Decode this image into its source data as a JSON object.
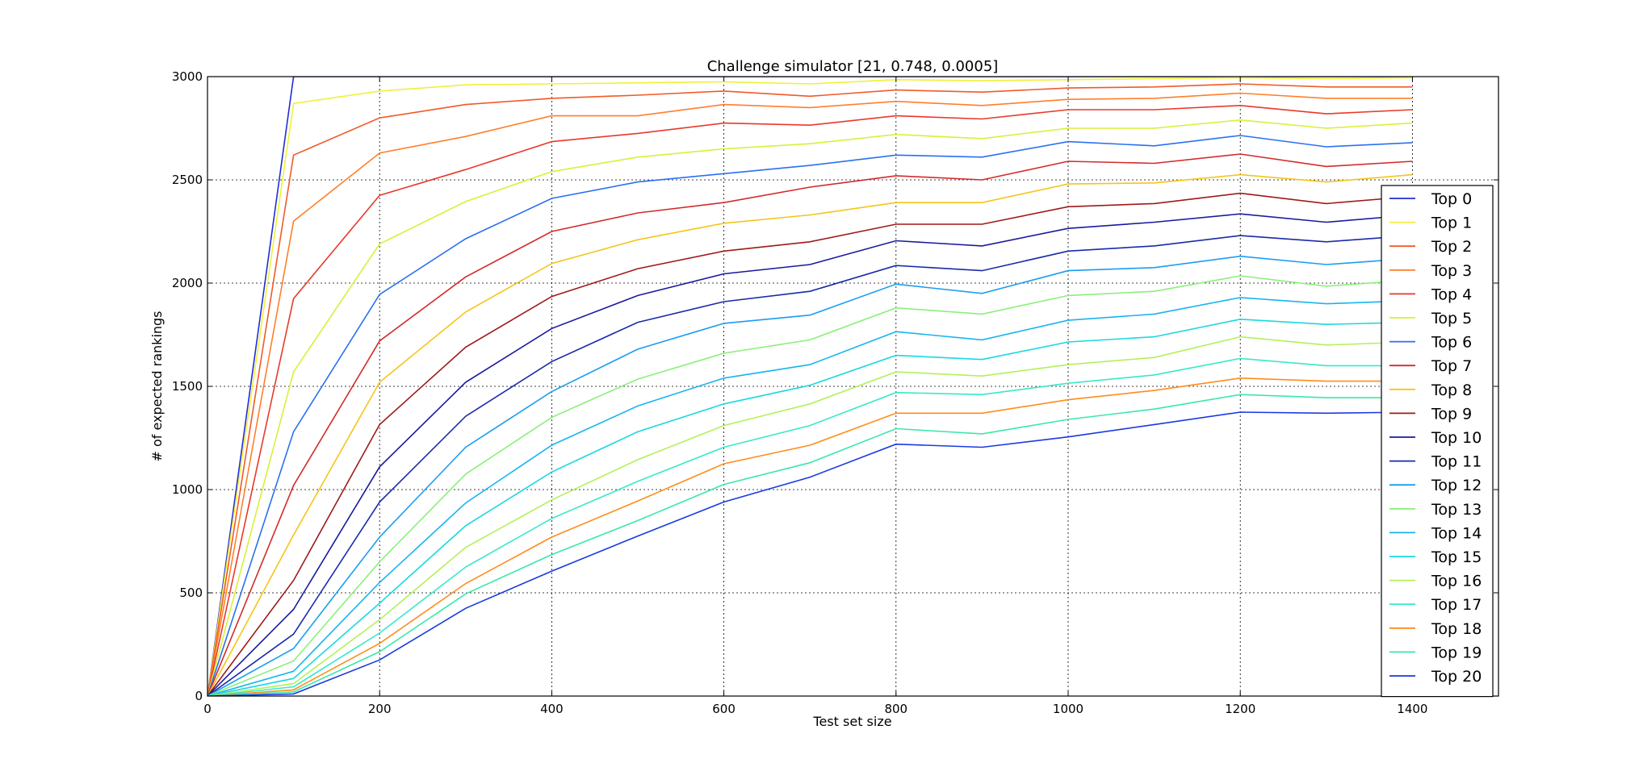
{
  "chart_data": {
    "type": "line",
    "title": "Challenge simulator [21, 0.748, 0.0005]",
    "xlabel": "Test set size",
    "ylabel": "# of expected rankings",
    "xlim": [
      0,
      1500
    ],
    "ylim": [
      0,
      3000
    ],
    "xticks": [
      0,
      200,
      400,
      600,
      800,
      1000,
      1200,
      1400
    ],
    "yticks": [
      0,
      500,
      1000,
      1500,
      2000,
      2500,
      3000
    ],
    "grid": true,
    "legend_position": "right",
    "x": [
      0,
      100,
      200,
      300,
      400,
      500,
      600,
      700,
      800,
      900,
      1000,
      1100,
      1200,
      1300,
      1400
    ],
    "series": [
      {
        "name": "Top 0",
        "color": "#1f2ed6",
        "values": [
          0,
          3000,
          3000,
          3000,
          3000,
          3000,
          3000,
          3000,
          3000,
          3000,
          3000,
          3000,
          3000,
          3000,
          3000
        ]
      },
      {
        "name": "Top 1",
        "color": "#f0f03a",
        "values": [
          0,
          2870,
          2930,
          2960,
          2965,
          2970,
          2975,
          2965,
          2985,
          2980,
          2985,
          2990,
          2995,
          2990,
          2995
        ]
      },
      {
        "name": "Top 2",
        "color": "#f05a28",
        "values": [
          0,
          2620,
          2800,
          2865,
          2895,
          2910,
          2930,
          2905,
          2935,
          2925,
          2945,
          2950,
          2965,
          2950,
          2950
        ]
      },
      {
        "name": "Top 3",
        "color": "#ff7f2a",
        "values": [
          0,
          2300,
          2630,
          2710,
          2810,
          2810,
          2865,
          2850,
          2880,
          2860,
          2890,
          2895,
          2920,
          2895,
          2895
        ]
      },
      {
        "name": "Top 4",
        "color": "#e8392a",
        "values": [
          0,
          1925,
          2425,
          2550,
          2685,
          2725,
          2775,
          2765,
          2810,
          2795,
          2840,
          2840,
          2860,
          2820,
          2840
        ]
      },
      {
        "name": "Top 5",
        "color": "#d8f038",
        "values": [
          0,
          1570,
          2190,
          2395,
          2540,
          2610,
          2650,
          2675,
          2720,
          2700,
          2750,
          2750,
          2790,
          2750,
          2775
        ]
      },
      {
        "name": "Top 6",
        "color": "#2a70f0",
        "values": [
          0,
          1280,
          1945,
          2215,
          2410,
          2490,
          2530,
          2570,
          2620,
          2610,
          2685,
          2665,
          2715,
          2660,
          2680
        ]
      },
      {
        "name": "Top 7",
        "color": "#d42a2a",
        "values": [
          0,
          1020,
          1720,
          2030,
          2250,
          2340,
          2390,
          2465,
          2520,
          2500,
          2590,
          2580,
          2625,
          2565,
          2590
        ]
      },
      {
        "name": "Top 8",
        "color": "#f5c518",
        "values": [
          0,
          780,
          1520,
          1860,
          2095,
          2210,
          2290,
          2330,
          2390,
          2390,
          2480,
          2485,
          2525,
          2490,
          2525
        ]
      },
      {
        "name": "Top 9",
        "color": "#9e1a1a",
        "values": [
          0,
          560,
          1315,
          1690,
          1935,
          2070,
          2155,
          2200,
          2285,
          2285,
          2370,
          2385,
          2435,
          2385,
          2420
        ]
      },
      {
        "name": "Top 10",
        "color": "#1a1a9e",
        "values": [
          0,
          420,
          1110,
          1520,
          1780,
          1940,
          2045,
          2090,
          2205,
          2180,
          2265,
          2295,
          2335,
          2295,
          2330
        ]
      },
      {
        "name": "Top 11",
        "color": "#1a2aa8",
        "values": [
          0,
          300,
          940,
          1355,
          1620,
          1810,
          1910,
          1960,
          2085,
          2060,
          2155,
          2180,
          2230,
          2200,
          2230
        ]
      },
      {
        "name": "Top 12",
        "color": "#1a9ef0",
        "values": [
          0,
          230,
          770,
          1205,
          1475,
          1680,
          1805,
          1845,
          1995,
          1950,
          2060,
          2075,
          2130,
          2090,
          2120
        ]
      },
      {
        "name": "Top 13",
        "color": "#8af07a",
        "values": [
          0,
          170,
          650,
          1075,
          1350,
          1535,
          1660,
          1725,
          1880,
          1850,
          1940,
          1960,
          2035,
          1985,
          2015
        ]
      },
      {
        "name": "Top 14",
        "color": "#18b4f0",
        "values": [
          0,
          120,
          550,
          935,
          1215,
          1405,
          1540,
          1605,
          1765,
          1725,
          1820,
          1850,
          1930,
          1900,
          1915
        ]
      },
      {
        "name": "Top 15",
        "color": "#1ad8e0",
        "values": [
          0,
          85,
          450,
          825,
          1085,
          1280,
          1415,
          1505,
          1650,
          1630,
          1715,
          1740,
          1825,
          1800,
          1810
        ]
      },
      {
        "name": "Top 16",
        "color": "#b4f05a",
        "values": [
          0,
          60,
          370,
          720,
          950,
          1145,
          1310,
          1415,
          1570,
          1550,
          1605,
          1640,
          1740,
          1700,
          1715
        ]
      },
      {
        "name": "Top 17",
        "color": "#38e8c8",
        "values": [
          0,
          45,
          305,
          625,
          860,
          1040,
          1205,
          1310,
          1470,
          1460,
          1515,
          1555,
          1635,
          1600,
          1600
        ]
      },
      {
        "name": "Top 18",
        "color": "#ff8c1a",
        "values": [
          0,
          30,
          255,
          545,
          770,
          945,
          1125,
          1215,
          1370,
          1370,
          1435,
          1480,
          1540,
          1525,
          1525
        ]
      },
      {
        "name": "Top 19",
        "color": "#3ae8a8",
        "values": [
          0,
          20,
          215,
          495,
          685,
          850,
          1025,
          1130,
          1295,
          1270,
          1340,
          1390,
          1460,
          1445,
          1445
        ]
      },
      {
        "name": "Top 20",
        "color": "#1a3ae0",
        "values": [
          0,
          10,
          175,
          425,
          605,
          775,
          940,
          1060,
          1220,
          1205,
          1255,
          1315,
          1375,
          1370,
          1375
        ]
      }
    ]
  }
}
